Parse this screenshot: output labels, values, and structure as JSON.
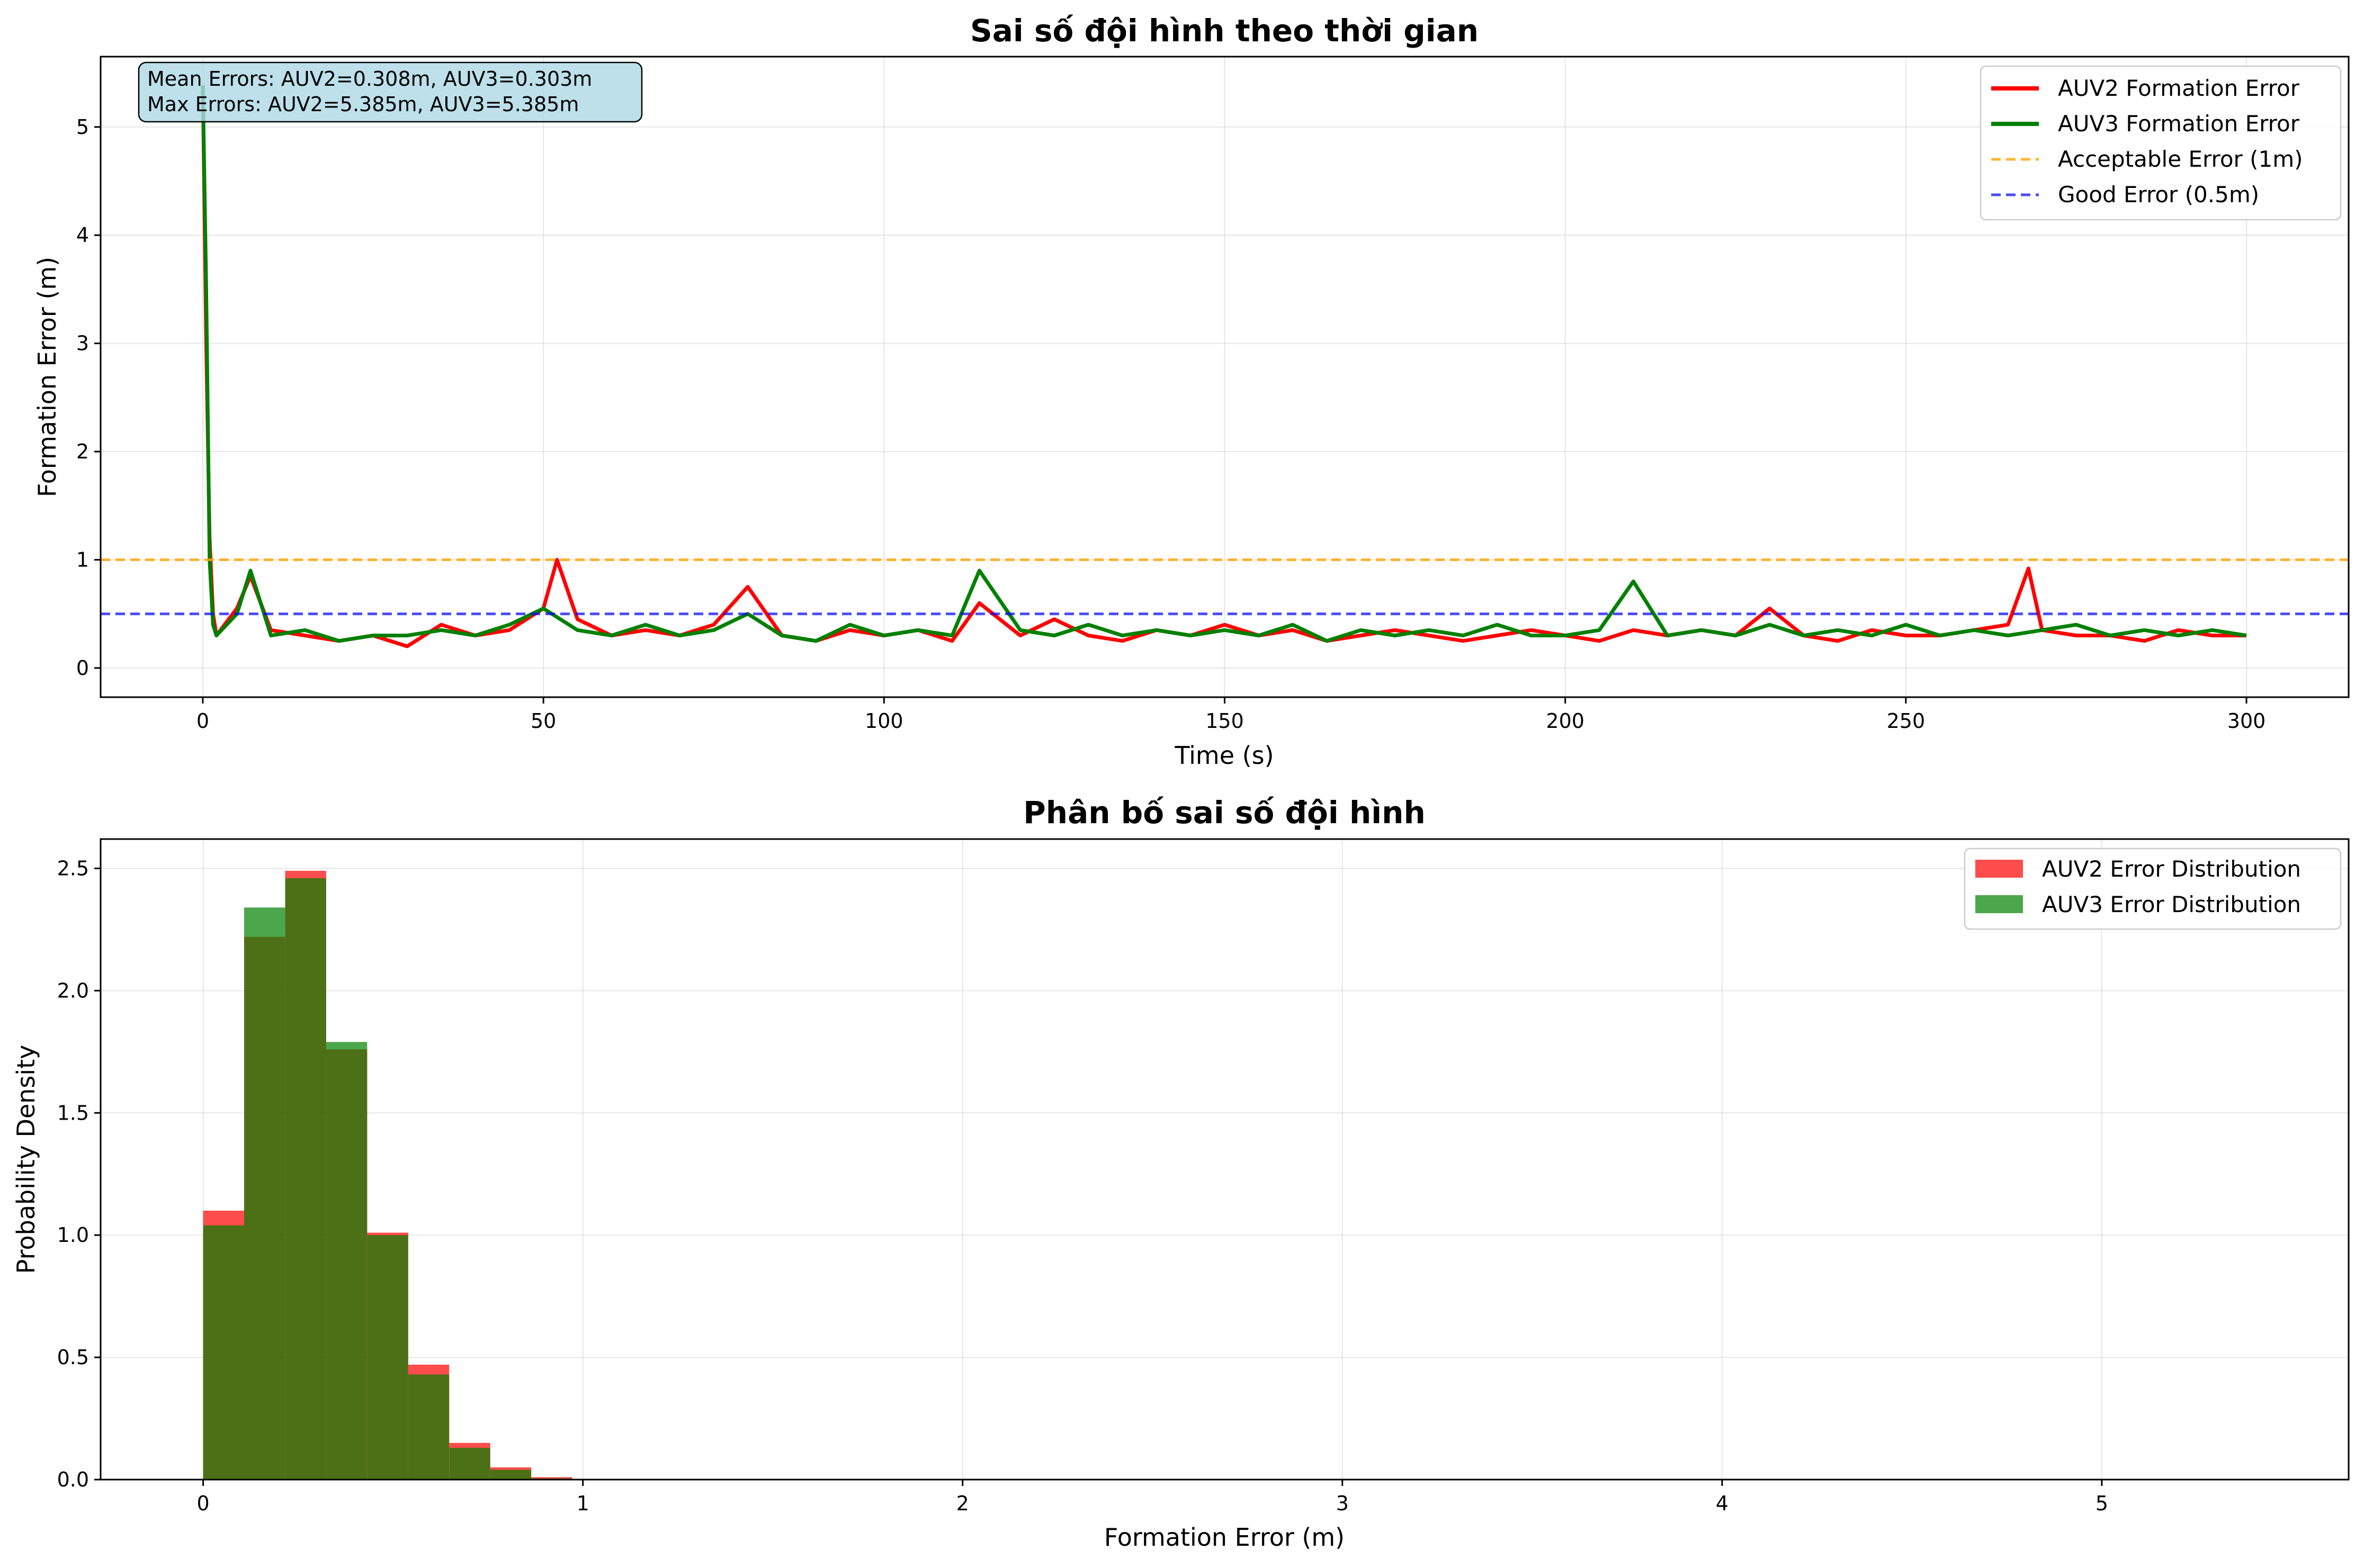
{
  "chart_data": [
    {
      "type": "line",
      "title": "Sai số đội hình theo thời gian",
      "xlabel": "Time (s)",
      "ylabel": "Formation Error (m)",
      "xlim": [
        -15,
        315
      ],
      "ylim": [
        -0.27,
        5.65
      ],
      "xticks": [
        0,
        50,
        100,
        150,
        200,
        250,
        300
      ],
      "yticks": [
        0,
        1,
        2,
        3,
        4,
        5
      ],
      "grid": true,
      "legend_position": "top-right",
      "annotation": {
        "line1": "Mean Errors: AUV2=0.308m, AUV3=0.303m",
        "line2": "Max Errors: AUV2=5.385m, AUV3=5.385m"
      },
      "series": [
        {
          "name": "AUV2 Formation Error",
          "color": "#ff0000",
          "x": [
            0,
            0.5,
            1,
            1.5,
            2,
            5,
            7,
            10,
            15,
            20,
            25,
            30,
            35,
            40,
            45,
            50,
            52,
            55,
            60,
            65,
            70,
            75,
            80,
            85,
            90,
            95,
            100,
            105,
            110,
            114,
            120,
            125,
            130,
            135,
            140,
            145,
            150,
            155,
            160,
            165,
            170,
            175,
            180,
            185,
            190,
            195,
            200,
            205,
            210,
            215,
            220,
            225,
            230,
            235,
            240,
            245,
            250,
            255,
            260,
            265,
            268,
            270,
            275,
            280,
            285,
            290,
            295,
            300
          ],
          "y": [
            5.385,
            3.0,
            1.2,
            0.5,
            0.3,
            0.55,
            0.85,
            0.35,
            0.3,
            0.25,
            0.3,
            0.2,
            0.4,
            0.3,
            0.35,
            0.55,
            1.0,
            0.45,
            0.3,
            0.35,
            0.3,
            0.4,
            0.75,
            0.3,
            0.25,
            0.35,
            0.3,
            0.35,
            0.25,
            0.6,
            0.3,
            0.45,
            0.3,
            0.25,
            0.35,
            0.3,
            0.4,
            0.3,
            0.35,
            0.25,
            0.3,
            0.35,
            0.3,
            0.25,
            0.3,
            0.35,
            0.3,
            0.25,
            0.35,
            0.3,
            0.35,
            0.3,
            0.55,
            0.3,
            0.25,
            0.35,
            0.3,
            0.3,
            0.35,
            0.4,
            0.92,
            0.35,
            0.3,
            0.3,
            0.25,
            0.35,
            0.3,
            0.3
          ]
        },
        {
          "name": "AUV3 Formation Error",
          "color": "#008000",
          "x": [
            0,
            0.5,
            1,
            1.5,
            2,
            5,
            7,
            10,
            15,
            20,
            25,
            30,
            35,
            40,
            45,
            50,
            55,
            60,
            65,
            70,
            75,
            80,
            85,
            90,
            95,
            100,
            105,
            110,
            114,
            120,
            125,
            130,
            135,
            140,
            145,
            150,
            155,
            160,
            165,
            170,
            175,
            180,
            185,
            190,
            195,
            200,
            205,
            210,
            215,
            220,
            225,
            230,
            235,
            240,
            245,
            250,
            255,
            260,
            265,
            270,
            275,
            280,
            285,
            290,
            295,
            300
          ],
          "y": [
            5.385,
            3.5,
            1.0,
            0.4,
            0.3,
            0.5,
            0.9,
            0.3,
            0.35,
            0.25,
            0.3,
            0.3,
            0.35,
            0.3,
            0.4,
            0.55,
            0.35,
            0.3,
            0.4,
            0.3,
            0.35,
            0.5,
            0.3,
            0.25,
            0.4,
            0.3,
            0.35,
            0.3,
            0.9,
            0.35,
            0.3,
            0.4,
            0.3,
            0.35,
            0.3,
            0.35,
            0.3,
            0.4,
            0.25,
            0.35,
            0.3,
            0.35,
            0.3,
            0.4,
            0.3,
            0.3,
            0.35,
            0.8,
            0.3,
            0.35,
            0.3,
            0.4,
            0.3,
            0.35,
            0.3,
            0.4,
            0.3,
            0.35,
            0.3,
            0.35,
            0.4,
            0.3,
            0.35,
            0.3,
            0.35,
            0.3
          ]
        },
        {
          "name": "Acceptable Error (1m)",
          "color": "#ffa500",
          "dashed": true,
          "y": 1
        },
        {
          "name": "Good Error (0.5m)",
          "color": "#0000ff",
          "dashed": true,
          "y": 0.5
        }
      ]
    },
    {
      "type": "bar",
      "title": "Phân bố sai số đội hình",
      "xlabel": "Formation Error (m)",
      "ylabel": "Probability Density",
      "xlim": [
        -0.27,
        5.65
      ],
      "ylim": [
        0,
        2.62
      ],
      "xticks": [
        0,
        1,
        2,
        3,
        4,
        5
      ],
      "yticks": [
        0.0,
        0.5,
        1.0,
        1.5,
        2.0,
        2.5
      ],
      "ytick_labels": [
        "0.0",
        "0.5",
        "1.0",
        "1.5",
        "2.0",
        "2.5"
      ],
      "grid": true,
      "legend_position": "top-right",
      "bin_width": 0.108,
      "bins_start": [
        0,
        0.108,
        0.216,
        0.324,
        0.432,
        0.54,
        0.648,
        0.756,
        0.864
      ],
      "series": [
        {
          "name": "AUV2 Error Distribution",
          "color": "#ff0000",
          "values": [
            1.1,
            2.22,
            2.49,
            1.76,
            1.01,
            0.47,
            0.15,
            0.05,
            0.01
          ]
        },
        {
          "name": "AUV3 Error Distribution",
          "color": "#008000",
          "values": [
            1.04,
            2.34,
            2.46,
            1.79,
            1.0,
            0.43,
            0.13,
            0.04,
            0.005
          ]
        }
      ]
    }
  ]
}
